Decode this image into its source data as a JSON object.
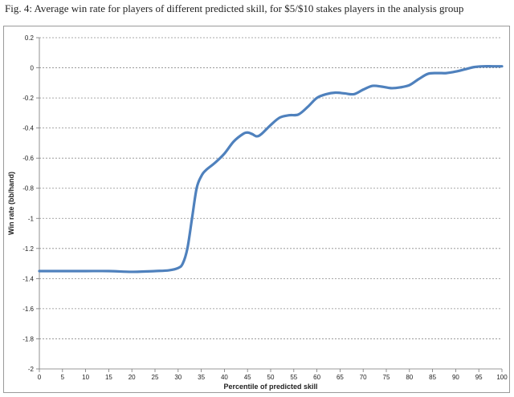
{
  "caption": "Fig. 4: Average win rate for players of different predicted skill, for $5/$10 stakes players in the analysis group",
  "chart_data": {
    "type": "line",
    "title": "",
    "xlabel": "Percentile of predicted skill",
    "ylabel": "Win rate (bb/hand)",
    "xlim": [
      0,
      100
    ],
    "ylim": [
      -2,
      0.2
    ],
    "x_ticks": [
      0,
      5,
      10,
      15,
      20,
      25,
      30,
      35,
      40,
      45,
      50,
      55,
      60,
      65,
      70,
      75,
      80,
      85,
      90,
      95,
      100
    ],
    "y_ticks": [
      0.2,
      0,
      -0.2,
      -0.4,
      -0.6,
      -0.8,
      -1,
      -1.2,
      -1.4,
      -1.6,
      -1.8,
      -2
    ],
    "grid": "horizontal dashed",
    "legend": "none",
    "line_color": "#4f81bd",
    "series": [
      {
        "x": [
          0,
          5,
          10,
          15,
          20,
          25,
          28,
          30,
          31,
          32,
          33,
          34,
          35,
          36,
          38,
          40,
          42,
          44,
          45,
          46,
          47,
          48,
          50,
          52,
          54,
          56,
          58,
          60,
          62,
          64,
          66,
          68,
          70,
          72,
          74,
          76,
          78,
          80,
          82,
          84,
          86,
          88,
          90,
          92,
          94,
          96,
          98,
          100
        ],
        "y": [
          -1.35,
          -1.35,
          -1.35,
          -1.35,
          -1.355,
          -1.35,
          -1.345,
          -1.33,
          -1.3,
          -1.2,
          -1.0,
          -0.8,
          -0.72,
          -0.68,
          -0.63,
          -0.57,
          -0.49,
          -0.44,
          -0.43,
          -0.44,
          -0.455,
          -0.44,
          -0.38,
          -0.33,
          -0.315,
          -0.31,
          -0.26,
          -0.2,
          -0.175,
          -0.165,
          -0.17,
          -0.175,
          -0.145,
          -0.12,
          -0.125,
          -0.135,
          -0.13,
          -0.115,
          -0.075,
          -0.04,
          -0.035,
          -0.035,
          -0.025,
          -0.01,
          0.005,
          0.01,
          0.01,
          0.01
        ]
      }
    ]
  }
}
